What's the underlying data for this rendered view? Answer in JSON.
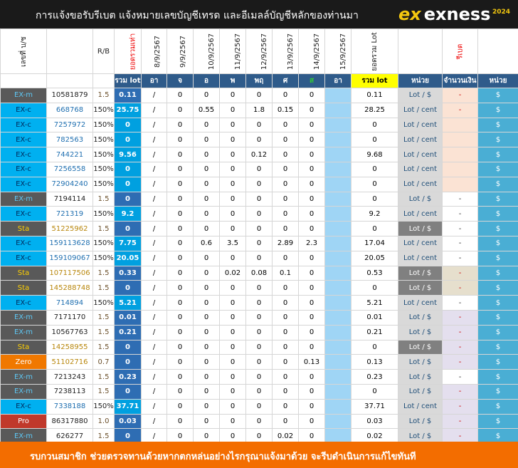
{
  "header": {
    "title": "การแจ้งขอรับรีเบต  แจ้งหมายเลขบัญชีเทรด และอีเมลล์บัญชีหลักของท่านมา",
    "logo": "exness",
    "logo_mark": "ex",
    "year": "2024"
  },
  "columns": {
    "type": "เลขที่ บ/ช",
    "rb": "R/B",
    "total_label": "ยอดรวมเท่า",
    "dates": [
      "8/9/2567",
      "9/9/2567",
      "10/9/2567",
      "11/9/2567",
      "12/9/2567",
      "13/9/2567",
      "14/9/2567",
      "15/9/2567"
    ],
    "sum_label": "ยอดรวม Lot",
    "rebate_label": "รีเบต"
  },
  "subheader": [
    "รวม lot",
    "อา",
    "จ",
    "อ",
    "พ",
    "พฤ",
    "ศ",
    "ส",
    "อา",
    "รวม lot",
    "หน่วย",
    "จำนวนเงิน",
    "หน่วย"
  ],
  "rows": [
    {
      "type": "EX-m",
      "acct": "10581879",
      "rb": "1.5",
      "lot": "0.11",
      "d": [
        "/",
        "0",
        "0",
        "0",
        "0",
        "0",
        "0"
      ],
      "sum": "0.11",
      "unit": "Lot / $",
      "amt": "-",
      "cur": "$"
    },
    {
      "type": "EX-c",
      "acct": "668768",
      "rb": "150%",
      "lot": "25.75",
      "d": [
        "/",
        "0",
        "0.55",
        "0",
        "1.8",
        "0.15",
        "0"
      ],
      "sum": "28.25",
      "unit": "Lot / cent",
      "amt": "-",
      "cur": "$"
    },
    {
      "type": "EX-c",
      "acct": "7257972",
      "rb": "150%",
      "lot": "0",
      "d": [
        "/",
        "0",
        "0",
        "0",
        "0",
        "0",
        "0"
      ],
      "sum": "0",
      "unit": "Lot / cent",
      "amt": "",
      "cur": "$"
    },
    {
      "type": "EX-c",
      "acct": "782563",
      "rb": "150%",
      "lot": "0",
      "d": [
        "/",
        "0",
        "0",
        "0",
        "0",
        "0",
        "0"
      ],
      "sum": "0",
      "unit": "Lot / cent",
      "amt": "",
      "cur": "$"
    },
    {
      "type": "EX-c",
      "acct": "744221",
      "rb": "150%",
      "lot": "9.56",
      "d": [
        "/",
        "0",
        "0",
        "0",
        "0.12",
        "0",
        "0"
      ],
      "sum": "9.68",
      "unit": "Lot / cent",
      "amt": "",
      "cur": "$"
    },
    {
      "type": "EX-c",
      "acct": "7256558",
      "rb": "150%",
      "lot": "0",
      "d": [
        "/",
        "0",
        "0",
        "0",
        "0",
        "0",
        "0"
      ],
      "sum": "0",
      "unit": "Lot / cent",
      "amt": "",
      "cur": "$"
    },
    {
      "type": "EX-c",
      "acct": "72904240",
      "rb": "150%",
      "lot": "0",
      "d": [
        "/",
        "0",
        "0",
        "0",
        "0",
        "0",
        "0"
      ],
      "sum": "0",
      "unit": "Lot / cent",
      "amt": "",
      "cur": "$"
    },
    {
      "type": "EX-m",
      "acct": "7194114",
      "rb": "1.5",
      "lot": "0",
      "d": [
        "/",
        "0",
        "0",
        "0",
        "0",
        "0",
        "0"
      ],
      "sum": "0",
      "unit": "Lot / $",
      "amt": "-",
      "cur": "$"
    },
    {
      "type": "EX-c",
      "acct": "721319",
      "rb": "150%",
      "lot": "9.2",
      "d": [
        "/",
        "0",
        "0",
        "0",
        "0",
        "0",
        "0"
      ],
      "sum": "9.2",
      "unit": "Lot / cent",
      "amt": "-",
      "cur": "$"
    },
    {
      "type": "Sta",
      "acct": "51225962",
      "rb": "1.5",
      "lot": "0",
      "d": [
        "/",
        "0",
        "0",
        "0",
        "0",
        "0",
        "0"
      ],
      "sum": "0",
      "unit": "Lot / $",
      "amt": "-",
      "cur": "$"
    },
    {
      "type": "EX-c",
      "acct": "159113628",
      "rb": "150%",
      "lot": "7.75",
      "d": [
        "/",
        "0",
        "0.6",
        "3.5",
        "0",
        "2.89",
        "2.3"
      ],
      "sum": "17.04",
      "unit": "Lot / cent",
      "amt": "-",
      "cur": "$"
    },
    {
      "type": "EX-c",
      "acct": "159109067",
      "rb": "150%",
      "lot": "20.05",
      "d": [
        "/",
        "0",
        "0",
        "0",
        "0",
        "0",
        "0"
      ],
      "sum": "20.05",
      "unit": "Lot / cent",
      "amt": "-",
      "cur": "$"
    },
    {
      "type": "Sta",
      "acct": "107117506",
      "rb": "1.5",
      "lot": "0.33",
      "d": [
        "/",
        "0",
        "0",
        "0.02",
        "0.08",
        "0.1",
        "0"
      ],
      "sum": "0.53",
      "unit": "Lot / $",
      "amt": "-",
      "cur": "$"
    },
    {
      "type": "Sta",
      "acct": "145288748",
      "rb": "1.5",
      "lot": "0",
      "d": [
        "/",
        "0",
        "0",
        "0",
        "0",
        "0",
        "0"
      ],
      "sum": "0",
      "unit": "Lot / $",
      "amt": "-",
      "cur": "$"
    },
    {
      "type": "EX-c",
      "acct": "714894",
      "rb": "150%",
      "lot": "5.21",
      "d": [
        "/",
        "0",
        "0",
        "0",
        "0",
        "0",
        "0"
      ],
      "sum": "5.21",
      "unit": "Lot / cent",
      "amt": "-",
      "cur": "$"
    },
    {
      "type": "EX-m",
      "acct": "7171170",
      "rb": "1.5",
      "lot": "0.01",
      "d": [
        "/",
        "0",
        "0",
        "0",
        "0",
        "0",
        "0"
      ],
      "sum": "0.01",
      "unit": "Lot / $",
      "amt": "-",
      "cur": "$"
    },
    {
      "type": "EX-m",
      "acct": "10567763",
      "rb": "1.5",
      "lot": "0.21",
      "d": [
        "/",
        "0",
        "0",
        "0",
        "0",
        "0",
        "0"
      ],
      "sum": "0.21",
      "unit": "Lot / $",
      "amt": "-",
      "cur": "$"
    },
    {
      "type": "Sta",
      "acct": "14258955",
      "rb": "1.5",
      "lot": "0",
      "d": [
        "/",
        "0",
        "0",
        "0",
        "0",
        "0",
        "0"
      ],
      "sum": "0",
      "unit": "Lot / $",
      "amt": "-",
      "cur": "$"
    },
    {
      "type": "Zero",
      "acct": "51102716",
      "rb": "0.7",
      "lot": "0",
      "d": [
        "/",
        "0",
        "0",
        "0",
        "0",
        "0",
        "0.13"
      ],
      "sum": "0.13",
      "unit": "Lot / $",
      "amt": "-",
      "cur": "$"
    },
    {
      "type": "EX-m",
      "acct": "7213243",
      "rb": "1.5",
      "lot": "0.23",
      "d": [
        "/",
        "0",
        "0",
        "0",
        "0",
        "0",
        "0"
      ],
      "sum": "0.23",
      "unit": "Lot / $",
      "amt": "-",
      "cur": "$"
    },
    {
      "type": "EX-m",
      "acct": "7238113",
      "rb": "1.5",
      "lot": "0",
      "d": [
        "/",
        "0",
        "0",
        "0",
        "0",
        "0",
        "0"
      ],
      "sum": "0",
      "unit": "Lot / $",
      "amt": "-",
      "cur": "$"
    },
    {
      "type": "EX-c",
      "acct": "7338188",
      "rb": "150%",
      "lot": "37.71",
      "d": [
        "/",
        "0",
        "0",
        "0",
        "0",
        "0",
        "0"
      ],
      "sum": "37.71",
      "unit": "Lot / cent",
      "amt": "-",
      "cur": "$"
    },
    {
      "type": "Pro",
      "acct": "86317880",
      "rb": "1.0",
      "lot": "0.03",
      "d": [
        "/",
        "0",
        "0",
        "0",
        "0",
        "0",
        "0"
      ],
      "sum": "0.03",
      "unit": "Lot / $",
      "amt": "-",
      "cur": "$"
    },
    {
      "type": "EX-m",
      "acct": "626277",
      "rb": "1.5",
      "lot": "0",
      "d": [
        "/",
        "0",
        "0",
        "0",
        "0",
        "0.02",
        "0"
      ],
      "sum": "0.02",
      "unit": "Lot / $",
      "amt": "-",
      "cur": "$"
    }
  ],
  "footer": {
    "message": "รบกวนสมาชิก ช่วยตรวจทานด้วยหากตกหล่นอย่างไรกรุณาแจ้งมาด้วย จะรีบดำเนินการแก้ไขทันที"
  }
}
